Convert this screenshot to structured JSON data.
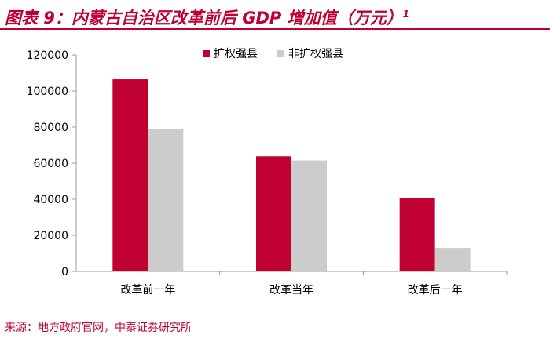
{
  "header": {
    "title": "图表 9：内蒙古自治区改革前后 GDP 增加值（万元）",
    "footnote_mark": "1"
  },
  "footer": {
    "source": "来源：地方政府官网，中泰证券研究所"
  },
  "colors": {
    "accent": "#c00030",
    "series": [
      "#c00030",
      "#cccccc"
    ],
    "axis": "#999999",
    "text": "#000000"
  },
  "chart_data": {
    "type": "bar",
    "categories": [
      "改革前一年",
      "改革当年",
      "改革后一年"
    ],
    "series": [
      {
        "name": "扩权强县",
        "values": [
          106500,
          63800,
          40800
        ]
      },
      {
        "name": "非扩权强县",
        "values": [
          79000,
          61500,
          13000
        ]
      }
    ],
    "ylim": [
      0,
      120000
    ],
    "yticks": [
      0,
      20000,
      40000,
      60000,
      80000,
      100000,
      120000
    ],
    "grid": false,
    "legend": "top-center"
  }
}
